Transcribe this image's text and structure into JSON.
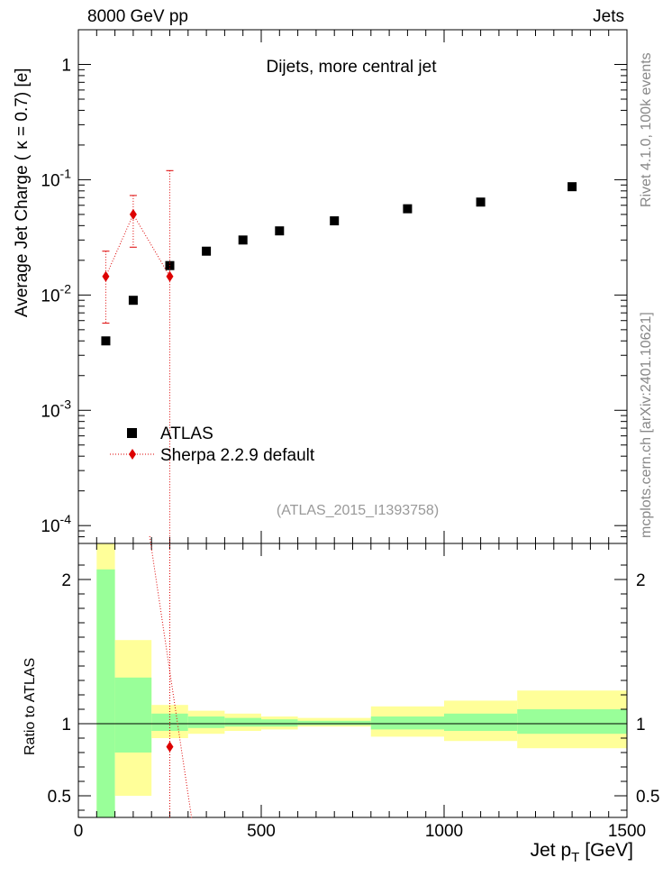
{
  "header": {
    "left": "8000 GeV pp",
    "right": "Jets"
  },
  "plot_title": "Dijets, more central jet",
  "analysis_id": "(ATLAS_2015_I1393758)",
  "side_text": {
    "rivet": "Rivet 4.1.0,  100k events",
    "source": "mcplots.cern.ch [arXiv:2401.10621]"
  },
  "legend": {
    "data_label": "ATLAS",
    "mc_label": "Sherpa 2.2.9 default"
  },
  "colors": {
    "data": "#000000",
    "mc": "#dd0000",
    "band_inner": "#99ff99",
    "band_outer": "#ffff99"
  },
  "chart_data": [
    {
      "type": "scatter",
      "title": "Dijets, more central jet",
      "ylabel_main": "Average Jet Charge (",
      "ylabel_kappa": "κ",
      "ylabel_rest": " = 0.7) [e]",
      "yscale": "log",
      "ylim": [
        7e-05,
        2
      ],
      "xlim": [
        0,
        1500
      ],
      "y_ticks": [
        {
          "base": "10",
          "exp": "-4",
          "value": 0.0001
        },
        {
          "base": "10",
          "exp": "-3",
          "value": 0.001
        },
        {
          "base": "10",
          "exp": "-2",
          "value": 0.01
        },
        {
          "base": "10",
          "exp": "-1",
          "value": 0.1
        },
        {
          "base": "1",
          "exp": "",
          "value": 1
        }
      ],
      "series": [
        {
          "name": "ATLAS",
          "marker": "square",
          "x": [
            75,
            150,
            250,
            350,
            450,
            550,
            700,
            900,
            1100,
            1350
          ],
          "y": [
            0.004,
            0.009,
            0.018,
            0.024,
            0.03,
            0.036,
            0.044,
            0.056,
            0.064,
            0.087
          ]
        },
        {
          "name": "Sherpa 2.2.9 default",
          "marker": "diamond",
          "x": [
            75,
            150,
            250
          ],
          "y": [
            0.0145,
            0.05,
            0.0145
          ],
          "y_low": [
            0.0057,
            0.026,
            5e-05
          ],
          "y_high": [
            0.024,
            0.073,
            0.12
          ]
        }
      ]
    },
    {
      "type": "scatter",
      "ylabel": "Ratio to ATLAS",
      "xlabel_main": "Jet p",
      "xlabel_sub": "T",
      "xlabel_unit": "[GeV]",
      "xlim": [
        0,
        1500
      ],
      "ylim": [
        0.35,
        2.25
      ],
      "x_ticks": [
        "0",
        "500",
        "1000",
        "1500"
      ],
      "y_ticks": [
        "0.5",
        "1",
        "2"
      ],
      "y_tick_values": [
        0.5,
        1,
        2
      ],
      "bands": {
        "edges": [
          50,
          100,
          200,
          300,
          400,
          500,
          600,
          800,
          1000,
          1200,
          1500
        ],
        "inner_low": [
          0.3,
          0.8,
          0.95,
          0.97,
          0.98,
          0.98,
          0.99,
          0.96,
          0.95,
          0.93
        ],
        "inner_high": [
          2.07,
          1.32,
          1.07,
          1.05,
          1.04,
          1.03,
          1.02,
          1.05,
          1.07,
          1.1
        ],
        "outer_low": [
          0.3,
          0.5,
          0.9,
          0.93,
          0.95,
          0.96,
          0.98,
          0.91,
          0.88,
          0.83
        ],
        "outer_high": [
          2.25,
          1.58,
          1.13,
          1.09,
          1.07,
          1.05,
          1.04,
          1.12,
          1.16,
          1.23
        ]
      },
      "ratio_points": {
        "x": [
          250
        ],
        "y": [
          0.84
        ]
      },
      "ratio_line": {
        "x": [
          195,
          310
        ],
        "y": [
          2.3,
          0.34
        ]
      }
    }
  ]
}
